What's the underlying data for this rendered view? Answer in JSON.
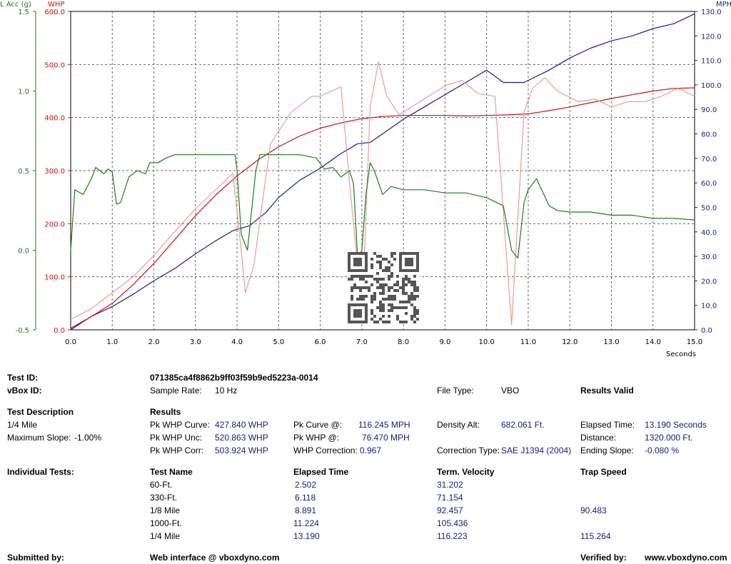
{
  "chart_data": {
    "type": "line",
    "xlabel": "Seconds",
    "xlim": [
      0,
      15
    ],
    "x_ticks": [
      "0.0",
      "1.0",
      "2.0",
      "3.0",
      "4.0",
      "5.0",
      "6.0",
      "7.0",
      "8.0",
      "9.0",
      "10.0",
      "11.0",
      "12.0",
      "13.0",
      "14.0",
      "15.0"
    ],
    "axes": {
      "lacc": {
        "label": "L Acc (g)",
        "color": "#1e7a1e",
        "range": [
          -0.5,
          1.5
        ],
        "ticks": [
          "-0.5",
          "0.0",
          "0.5",
          "1.0",
          "1.5"
        ]
      },
      "whp": {
        "label": "WHP",
        "color": "#cc1111",
        "range": [
          0,
          600
        ],
        "ticks": [
          "0.0",
          "100.0",
          "200.0",
          "300.0",
          "400.0",
          "500.0",
          "600.0"
        ]
      },
      "mph": {
        "label": "MPH",
        "color": "#1a1a9a",
        "range": [
          0,
          130
        ],
        "ticks": [
          "0.0",
          "10.0",
          "20.0",
          "30.0",
          "40.0",
          "50.0",
          "60.0",
          "70.0",
          "80.0",
          "90.0",
          "100.0",
          "110.0",
          "120.0",
          "130.0"
        ]
      }
    },
    "grid": true,
    "series": [
      {
        "axis": "mph",
        "color": "#1a1aa0",
        "x": [
          0,
          0.5,
          1,
          1.5,
          2,
          2.5,
          3,
          3.5,
          3.9,
          4.3,
          4.7,
          5,
          5.5,
          6,
          6.5,
          6.9,
          7.2,
          7.5,
          8,
          8.5,
          9,
          9.5,
          10,
          10.4,
          10.9,
          11.5,
          12,
          12.5,
          13,
          13.5,
          14,
          14.5,
          15
        ],
        "y": [
          0,
          5.5,
          9.5,
          14.5,
          20,
          25,
          31,
          36.5,
          40.5,
          42.5,
          48,
          54,
          61,
          66,
          72,
          76,
          76.5,
          80,
          86,
          91,
          96,
          101,
          106,
          101,
          101,
          106,
          111,
          115,
          118,
          120,
          123,
          125,
          129
        ]
      },
      {
        "axis": "whp",
        "color": "#cc1111",
        "x": [
          0,
          0.5,
          1,
          1.5,
          2,
          2.5,
          3,
          3.5,
          4,
          4.5,
          5,
          5.5,
          6,
          6.5,
          7,
          7.5,
          8,
          8.5,
          9,
          9.5,
          10,
          10.5,
          11,
          11.5,
          12,
          12.5,
          13,
          13.5,
          14,
          14.5,
          15
        ],
        "y": [
          3,
          25,
          50,
          85,
          125,
          170,
          215,
          255,
          290,
          320,
          345,
          365,
          380,
          390,
          398,
          402,
          404,
          404,
          404,
          403,
          404,
          405,
          407,
          413,
          420,
          428,
          436,
          443,
          450,
          455,
          456
        ]
      },
      {
        "axis": "whp",
        "color": "#ee9a9a",
        "x": [
          0,
          0.5,
          1,
          1.5,
          2,
          2.5,
          3,
          3.5,
          3.9,
          4.1,
          4.2,
          4.4,
          4.8,
          5.3,
          5.8,
          6.0,
          6.5,
          6.7,
          6.9,
          7.05,
          7.2,
          7.4,
          7.6,
          7.9,
          8.2,
          8.6,
          9,
          9.4,
          9.8,
          10.2,
          10.6,
          10.9,
          11.1,
          11.4,
          11.7,
          12.2,
          12.6,
          13,
          13.4,
          13.8,
          14.2,
          14.6,
          15
        ],
        "y": [
          20,
          40,
          70,
          100,
          140,
          185,
          228,
          265,
          295,
          150,
          70,
          120,
          350,
          410,
          440,
          440,
          458,
          280,
          120,
          120,
          420,
          505,
          440,
          405,
          420,
          440,
          460,
          470,
          445,
          440,
          10,
          410,
          455,
          475,
          450,
          430,
          435,
          420,
          430,
          430,
          440,
          455,
          440
        ]
      },
      {
        "axis": "lacc",
        "color": "#1e7a1e",
        "x": [
          0,
          0.1,
          0.3,
          0.5,
          0.6,
          0.8,
          0.9,
          1.0,
          1.1,
          1.2,
          1.4,
          1.6,
          1.8,
          1.9,
          2.1,
          2.3,
          2.5,
          3.0,
          3.5,
          3.95,
          4.0,
          4.1,
          4.25,
          4.45,
          4.55,
          4.7,
          5.0,
          5.5,
          5.9,
          6.1,
          6.3,
          6.5,
          6.7,
          6.8,
          6.9,
          7.0,
          7.1,
          7.2,
          7.3,
          7.5,
          7.7,
          8.0,
          8.5,
          9.0,
          9.5,
          10.0,
          10.4,
          10.6,
          10.75,
          10.9,
          11.0,
          11.2,
          11.5,
          11.7,
          12.0,
          12.5,
          13.0,
          13.5,
          14.0,
          14.5,
          15.0
        ],
        "y": [
          0.0,
          0.38,
          0.35,
          0.45,
          0.52,
          0.48,
          0.51,
          0.49,
          0.29,
          0.3,
          0.46,
          0.5,
          0.48,
          0.55,
          0.55,
          0.58,
          0.6,
          0.6,
          0.6,
          0.6,
          0.5,
          0.1,
          0.0,
          0.5,
          0.6,
          0.6,
          0.6,
          0.6,
          0.58,
          0.51,
          0.52,
          0.46,
          0.5,
          0.42,
          -0.05,
          0.0,
          0.35,
          0.55,
          0.5,
          0.35,
          0.4,
          0.38,
          0.38,
          0.36,
          0.36,
          0.33,
          0.28,
          0.0,
          -0.05,
          0.3,
          0.38,
          0.45,
          0.28,
          0.25,
          0.24,
          0.24,
          0.22,
          0.22,
          0.2,
          0.2,
          0.19
        ]
      }
    ]
  },
  "report": {
    "test_id_label": "Test ID:",
    "test_id_value": "071385ca4f8862b9ff03f59b9ed5223a-0014",
    "vbox_id_label": "vBox ID:",
    "sample_rate_label": "Sample Rate:",
    "sample_rate_value": "10 Hz",
    "file_type_label": "File Type:",
    "file_type_value": "VBO",
    "results_valid": "Results Valid",
    "test_desc_label": "Test Description",
    "test_desc_value": "1/4 Mile",
    "max_slope_label": "Maximum Slope:",
    "max_slope_value": "-1.00%",
    "results_label": "Results",
    "pk_whp_curve_label": "Pk WHP Curve:",
    "pk_whp_curve_value": "427.840 WHP",
    "pk_whp_unc_label": "Pk WHP Unc:",
    "pk_whp_unc_value": "520.863 WHP",
    "pk_whp_corr_label": "Pk WHP Corr:",
    "pk_whp_corr_value": "503.924 WHP",
    "pk_curve_at_label": "Pk Curve @:",
    "pk_curve_at_value": "116.245 MPH",
    "pk_whp_at_label": "Pk WHP @:",
    "pk_whp_at_value": "76.470 MPH",
    "whp_corr_label": "WHP Correction:",
    "whp_corr_value": "0.967",
    "density_alt_label": "Density Alt:",
    "density_alt_value": "682.061 Ft.",
    "corr_type_label": "Correction Type:",
    "corr_type_value": "SAE J1394 (2004)",
    "elapsed_time_label": "Elapsed Time:",
    "elapsed_time_value": "13.190 Seconds",
    "distance_label": "Distance:",
    "distance_value": "1320.000 Ft.",
    "ending_slope_label": "Ending Slope:",
    "ending_slope_value": "-0.080 %",
    "individual_tests_label": "Individual Tests:",
    "columns": [
      "Test Name",
      "Elapsed Time",
      "Term. Velocity",
      "Trap Speed"
    ],
    "tests": [
      {
        "name": "60-Ft.",
        "elapsed": "2.502",
        "velocity": "31.202",
        "trap": ""
      },
      {
        "name": "330-Ft.",
        "elapsed": "6.118",
        "velocity": "71.154",
        "trap": ""
      },
      {
        "name": "1/8 Mile",
        "elapsed": "8.891",
        "velocity": "92.457",
        "trap": "90.483"
      },
      {
        "name": "1000-Ft.",
        "elapsed": "11.224",
        "velocity": "105.436",
        "trap": ""
      },
      {
        "name": "1/4 Mile",
        "elapsed": "13.190",
        "velocity": "116.223",
        "trap": "115.264"
      }
    ],
    "submitted_by_label": "Submitted by:",
    "submitted_by_value": "Web interface @ vboxdyno.com",
    "verified_by_label": "Verified by:",
    "verified_by_value": "www.vboxdyno.com"
  }
}
